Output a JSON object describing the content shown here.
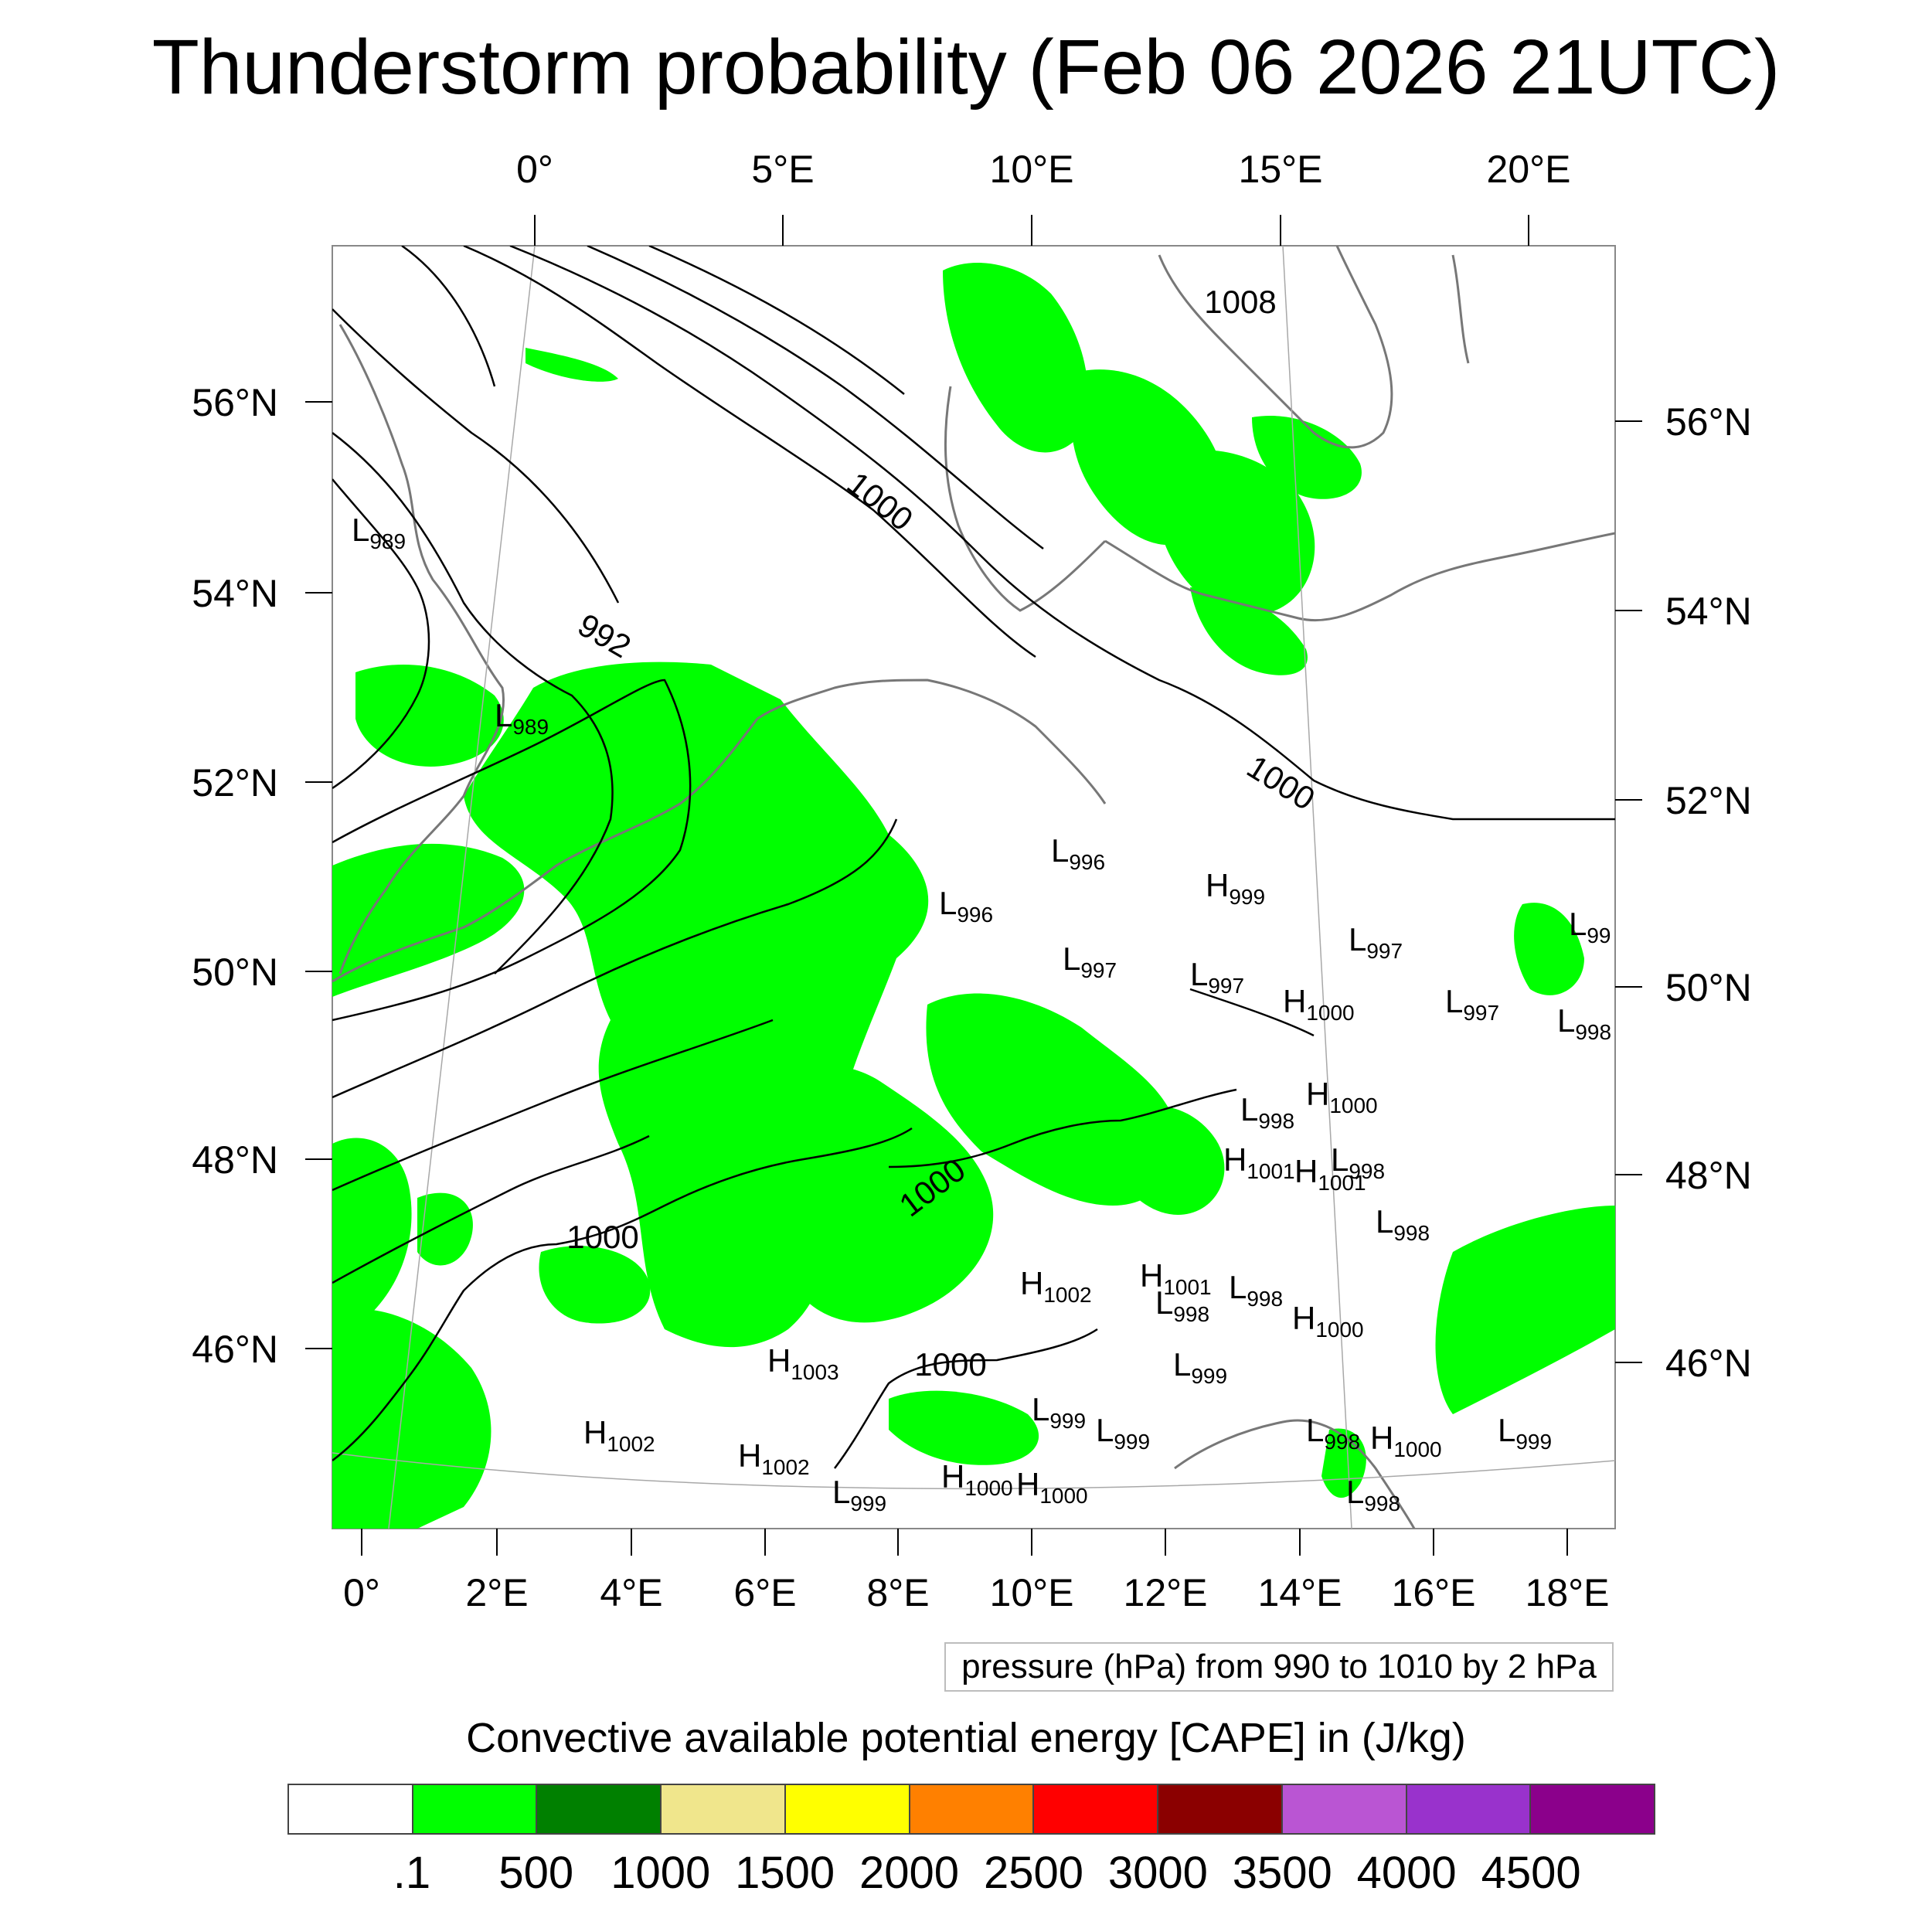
{
  "title": "Thunderstorm probability (Feb 06 2026 21UTC)",
  "top_lon_ticks": [
    "0°",
    "5°E",
    "10°E",
    "15°E",
    "20°E"
  ],
  "left_lat_ticks": [
    "56°N",
    "54°N",
    "52°N",
    "50°N",
    "48°N",
    "46°N"
  ],
  "right_lat_ticks": [
    "56°N",
    "54°N",
    "52°N",
    "50°N",
    "48°N",
    "46°N"
  ],
  "bottom_lon_ticks": [
    "0°",
    "2°E",
    "4°E",
    "6°E",
    "8°E",
    "10°E",
    "12°E",
    "14°E",
    "16°E",
    "18°E"
  ],
  "contour_labels": [
    "1008",
    "1000",
    "992",
    "1000",
    "1000",
    "1000",
    "1000"
  ],
  "pressure_centers": [
    {
      "type": "L",
      "value": "989"
    },
    {
      "type": "L",
      "value": "989"
    },
    {
      "type": "L",
      "value": "996"
    },
    {
      "type": "L",
      "value": "996"
    },
    {
      "type": "H",
      "value": "999"
    },
    {
      "type": "L",
      "value": "997"
    },
    {
      "type": "L",
      "value": "997"
    },
    {
      "type": "L",
      "value": "997"
    },
    {
      "type": "L",
      "value": "997"
    },
    {
      "type": "L",
      "value": "99"
    },
    {
      "type": "H",
      "value": "1000"
    },
    {
      "type": "L",
      "value": "998"
    },
    {
      "type": "L",
      "value": "998"
    },
    {
      "type": "H",
      "value": "1000"
    },
    {
      "type": "H",
      "value": "1001"
    },
    {
      "type": "H",
      "value": "1001"
    },
    {
      "type": "L",
      "value": "998"
    },
    {
      "type": "L",
      "value": "998"
    },
    {
      "type": "H",
      "value": "1002"
    },
    {
      "type": "H",
      "value": "1001"
    },
    {
      "type": "L",
      "value": "998"
    },
    {
      "type": "L",
      "value": "998"
    },
    {
      "type": "H",
      "value": "1000"
    },
    {
      "type": "H",
      "value": "1003"
    },
    {
      "type": "L",
      "value": "999"
    },
    {
      "type": "L",
      "value": "999"
    },
    {
      "type": "L",
      "value": "999"
    },
    {
      "type": "H",
      "value": "1002"
    },
    {
      "type": "H",
      "value": "1002"
    },
    {
      "type": "L",
      "value": "998"
    },
    {
      "type": "H",
      "value": "1000"
    },
    {
      "type": "L",
      "value": "999"
    },
    {
      "type": "L",
      "value": "999"
    },
    {
      "type": "H",
      "value": "1000"
    },
    {
      "type": "H",
      "value": "1000"
    },
    {
      "type": "L",
      "value": "998"
    }
  ],
  "pressure_note": "pressure (hPa) from 990 to 1010 by 2 hPa",
  "colorbar": {
    "title": "Convective available potential energy [CAPE] in (J/kg)",
    "colors": [
      "#ffffff",
      "#00ff00",
      "#008000",
      "#f0e68c",
      "#ffff00",
      "#ff8000",
      "#ff0000",
      "#8b0000",
      "#ba55d3",
      "#9932cc",
      "#8b008b"
    ],
    "labels": [
      ".1",
      "500",
      "1000",
      "1500",
      "2000",
      "2500",
      "3000",
      "3500",
      "4000",
      "4500"
    ]
  },
  "field_color": "#00ff00"
}
